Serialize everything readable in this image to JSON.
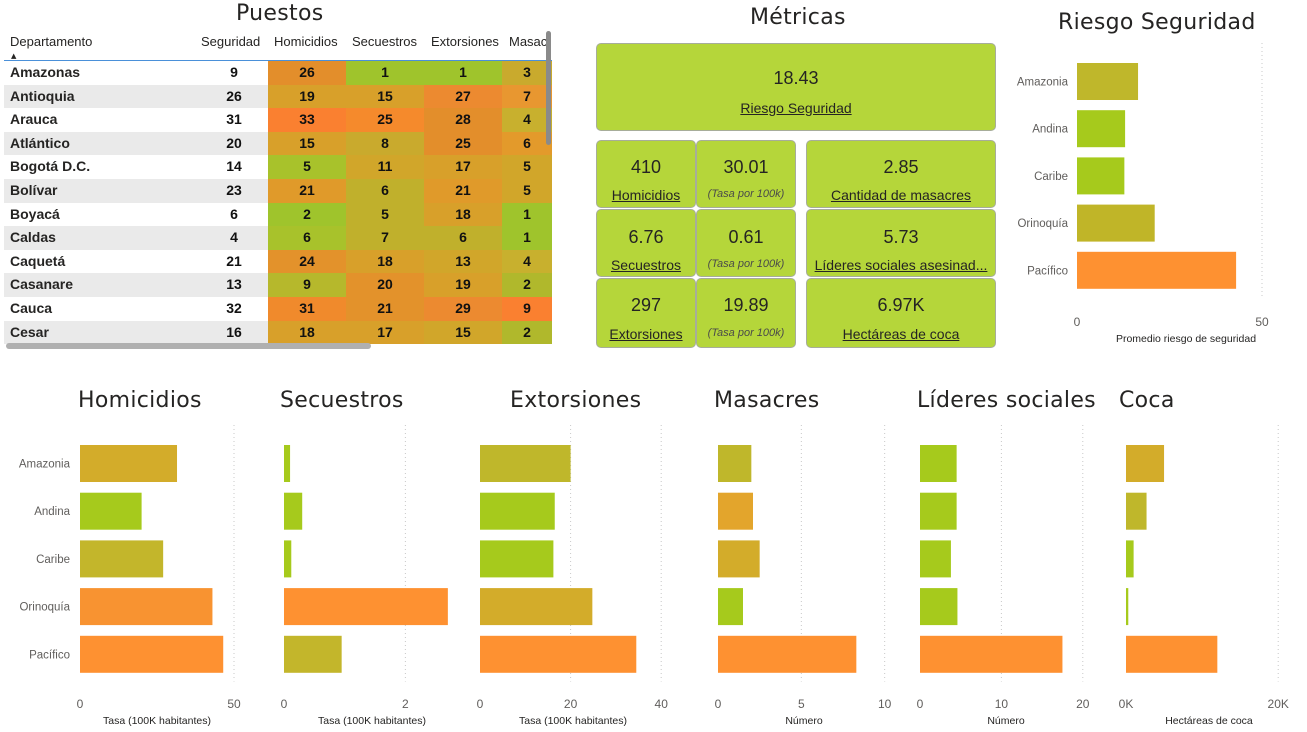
{
  "table": {
    "title": "Puestos",
    "columns": [
      "Departamento",
      "Seguridad",
      "Homicidios",
      "Secuestros",
      "Extorsiones",
      "Masac"
    ],
    "rows": [
      {
        "dept": "Amazonas",
        "seg": "9",
        "hom": "26",
        "sec": "1",
        "ext": "1",
        "mas": "3",
        "colors": [
          "#e38e2b",
          "#9fc42c",
          "#9fc42c",
          "#c9aa2d"
        ]
      },
      {
        "dept": "Antioquia",
        "seg": "26",
        "hom": "19",
        "sec": "15",
        "ext": "27",
        "mas": "7",
        "colors": [
          "#d8a02a",
          "#d8a02a",
          "#ec8a30",
          "#e89730"
        ]
      },
      {
        "dept": "Arauca",
        "seg": "31",
        "hom": "33",
        "sec": "25",
        "ext": "28",
        "mas": "4",
        "colors": [
          "#fa8030",
          "#f58a2c",
          "#e38e2b",
          "#c8b02e"
        ]
      },
      {
        "dept": "Atlántico",
        "seg": "20",
        "hom": "15",
        "sec": "8",
        "ext": "25",
        "mas": "6",
        "colors": [
          "#d8a02a",
          "#c9aa2d",
          "#e38e2b",
          "#e39a2b"
        ]
      },
      {
        "dept": "Bogotá D.C.",
        "seg": "14",
        "hom": "5",
        "sec": "11",
        "ext": "17",
        "mas": "5",
        "colors": [
          "#a8c22b",
          "#d1a62a",
          "#d8a02a",
          "#d1a62a"
        ]
      },
      {
        "dept": "Bolívar",
        "seg": "23",
        "hom": "21",
        "sec": "6",
        "ext": "21",
        "mas": "5",
        "colors": [
          "#e09a2a",
          "#c0b02c",
          "#e09a2a",
          "#d1a62a"
        ]
      },
      {
        "dept": "Boyacá",
        "seg": "6",
        "hom": "2",
        "sec": "5",
        "ext": "18",
        "mas": "1",
        "colors": [
          "#9fc42c",
          "#c0b02c",
          "#d8a02a",
          "#9fc42c"
        ]
      },
      {
        "dept": "Caldas",
        "seg": "4",
        "hom": "6",
        "sec": "7",
        "ext": "6",
        "mas": "1",
        "colors": [
          "#a8c22b",
          "#c0b02c",
          "#c0b02c",
          "#9fc42c"
        ]
      },
      {
        "dept": "Caquetá",
        "seg": "21",
        "hom": "24",
        "sec": "18",
        "ext": "13",
        "mas": "4",
        "colors": [
          "#e3922b",
          "#d8a02a",
          "#d1a62a",
          "#c8b02e"
        ]
      },
      {
        "dept": "Casanare",
        "seg": "13",
        "hom": "9",
        "sec": "20",
        "ext": "19",
        "mas": "2",
        "colors": [
          "#b6b82c",
          "#e3922b",
          "#d8a02a",
          "#b0b82c"
        ]
      },
      {
        "dept": "Cauca",
        "seg": "32",
        "hom": "31",
        "sec": "21",
        "ext": "29",
        "mas": "9",
        "colors": [
          "#f08a2c",
          "#e3922b",
          "#ec8a30",
          "#fa8030"
        ]
      },
      {
        "dept": "Cesar",
        "seg": "16",
        "hom": "18",
        "sec": "17",
        "ext": "15",
        "mas": "2",
        "colors": [
          "#d8a02a",
          "#d8a02a",
          "#d1a62a",
          "#b0b82c"
        ]
      }
    ]
  },
  "metrics": {
    "title": "Métricas",
    "main": {
      "value": "18.43",
      "label": "Riesgo Seguridad"
    },
    "homicidios": {
      "value": "410",
      "label": "Homicidios",
      "rate": "30.01",
      "rate_label": "(Tasa por 100k)"
    },
    "secuestros": {
      "value": "6.76",
      "label": "Secuestros ",
      "rate": "0.61",
      "rate_label": "(Tasa por 100k)"
    },
    "extorsiones": {
      "value": "297",
      "label": "Extorsiones",
      "rate": "19.89",
      "rate_label": "(Tasa por 100k)"
    },
    "masacres": {
      "value": "2.85",
      "label": "Cantidad de masacres"
    },
    "lideres": {
      "value": "5.73",
      "label": "Líderes sociales asesinad..."
    },
    "coca": {
      "value": "6.97K",
      "label": "Hectáreas de coca"
    }
  },
  "chart_data": [
    {
      "id": "riesgo",
      "type": "bar",
      "title": "Riesgo Seguridad",
      "categories": [
        "Amazonia",
        "Andina",
        "Caribe",
        "Orinoquía",
        "Pacífico"
      ],
      "values": [
        16.5,
        13,
        12.8,
        21,
        43
      ],
      "colors": [
        "#bfb72b",
        "#a6ca1c",
        "#a6ca1c",
        "#c0b528",
        "#fe9131"
      ],
      "xlim": [
        0,
        50
      ],
      "xticks": [
        "0",
        "50"
      ],
      "xlabel": "Promedio riesgo de seguridad"
    },
    {
      "id": "homicidios",
      "type": "bar",
      "title": "Homicidios",
      "categories": [
        "Amazonia",
        "Andina",
        "Caribe",
        "Orinoquía",
        "Pacífico"
      ],
      "values": [
        31.5,
        20,
        27,
        43,
        46.5
      ],
      "colors": [
        "#d3ac2a",
        "#a6ca1c",
        "#c3b62b",
        "#f89331",
        "#fe9131"
      ],
      "xlim": [
        0,
        50
      ],
      "xticks": [
        "0",
        "50"
      ],
      "xlabel": "Tasa (100K habitantes)"
    },
    {
      "id": "secuestros",
      "type": "bar",
      "title": "Secuestros",
      "categories": [
        "Amazonia",
        "Andina",
        "Caribe",
        "Orinoquía",
        "Pacífico"
      ],
      "values": [
        0.1,
        0.3,
        0.12,
        2.7,
        0.95
      ],
      "colors": [
        "#a6ca1c",
        "#a6ca1c",
        "#a6ca1c",
        "#fe9131",
        "#c3b62b"
      ],
      "xlim": [
        0,
        3
      ],
      "xticks": [
        "0",
        "2"
      ],
      "xlabel": "Tasa (100K habitantes)"
    },
    {
      "id": "extorsiones",
      "type": "bar",
      "title": "Extorsiones",
      "categories": [
        "Amazonia",
        "Andina",
        "Caribe",
        "Orinoquía",
        "Pacífico"
      ],
      "values": [
        20,
        16.5,
        16.2,
        24.8,
        34.5
      ],
      "colors": [
        "#bfb72b",
        "#a6ca1c",
        "#a6ca1c",
        "#d3ac2a",
        "#fe9131"
      ],
      "xlim": [
        0,
        40
      ],
      "xticks": [
        "0",
        "20",
        "40"
      ],
      "xlabel": "Tasa (100K habitantes)"
    },
    {
      "id": "masacres",
      "type": "bar",
      "title": "Masacres",
      "categories": [
        "Amazonia",
        "Andina",
        "Caribe",
        "Orinoquía",
        "Pacífico"
      ],
      "values": [
        2,
        2.1,
        2.5,
        1.5,
        8.3
      ],
      "colors": [
        "#bfb72b",
        "#e3a52c",
        "#d3ac2a",
        "#a6ca1c",
        "#fe9131"
      ],
      "xlim": [
        0,
        10
      ],
      "xticks": [
        "0",
        "5",
        "10"
      ],
      "xlabel": "Número"
    },
    {
      "id": "lideres",
      "type": "bar",
      "title": "Líderes sociales",
      "categories": [
        "Amazonia",
        "Andina",
        "Caribe",
        "Orinoquía",
        "Pacífico"
      ],
      "values": [
        4.5,
        4.5,
        3.8,
        4.6,
        17.5
      ],
      "colors": [
        "#a6ca1c",
        "#a6ca1c",
        "#a6ca1c",
        "#a6ca1c",
        "#fe9131"
      ],
      "xlim": [
        0,
        20
      ],
      "xticks": [
        "0",
        "10",
        "20"
      ],
      "xlabel": "Número"
    },
    {
      "id": "coca",
      "type": "bar",
      "title": "Coca",
      "categories": [
        "Amazonia",
        "Andina",
        "Caribe",
        "Orinoquía",
        "Pacífico"
      ],
      "values": [
        5000,
        2700,
        1000,
        300,
        12000
      ],
      "colors": [
        "#d3ac2a",
        "#bfb72b",
        "#a6ca1c",
        "#a6ca1c",
        "#fe9131"
      ],
      "xlim": [
        0,
        12500
      ],
      "xticks": [
        "0K",
        "20K"
      ],
      "xlabel": "Hectáreas de coca"
    }
  ]
}
